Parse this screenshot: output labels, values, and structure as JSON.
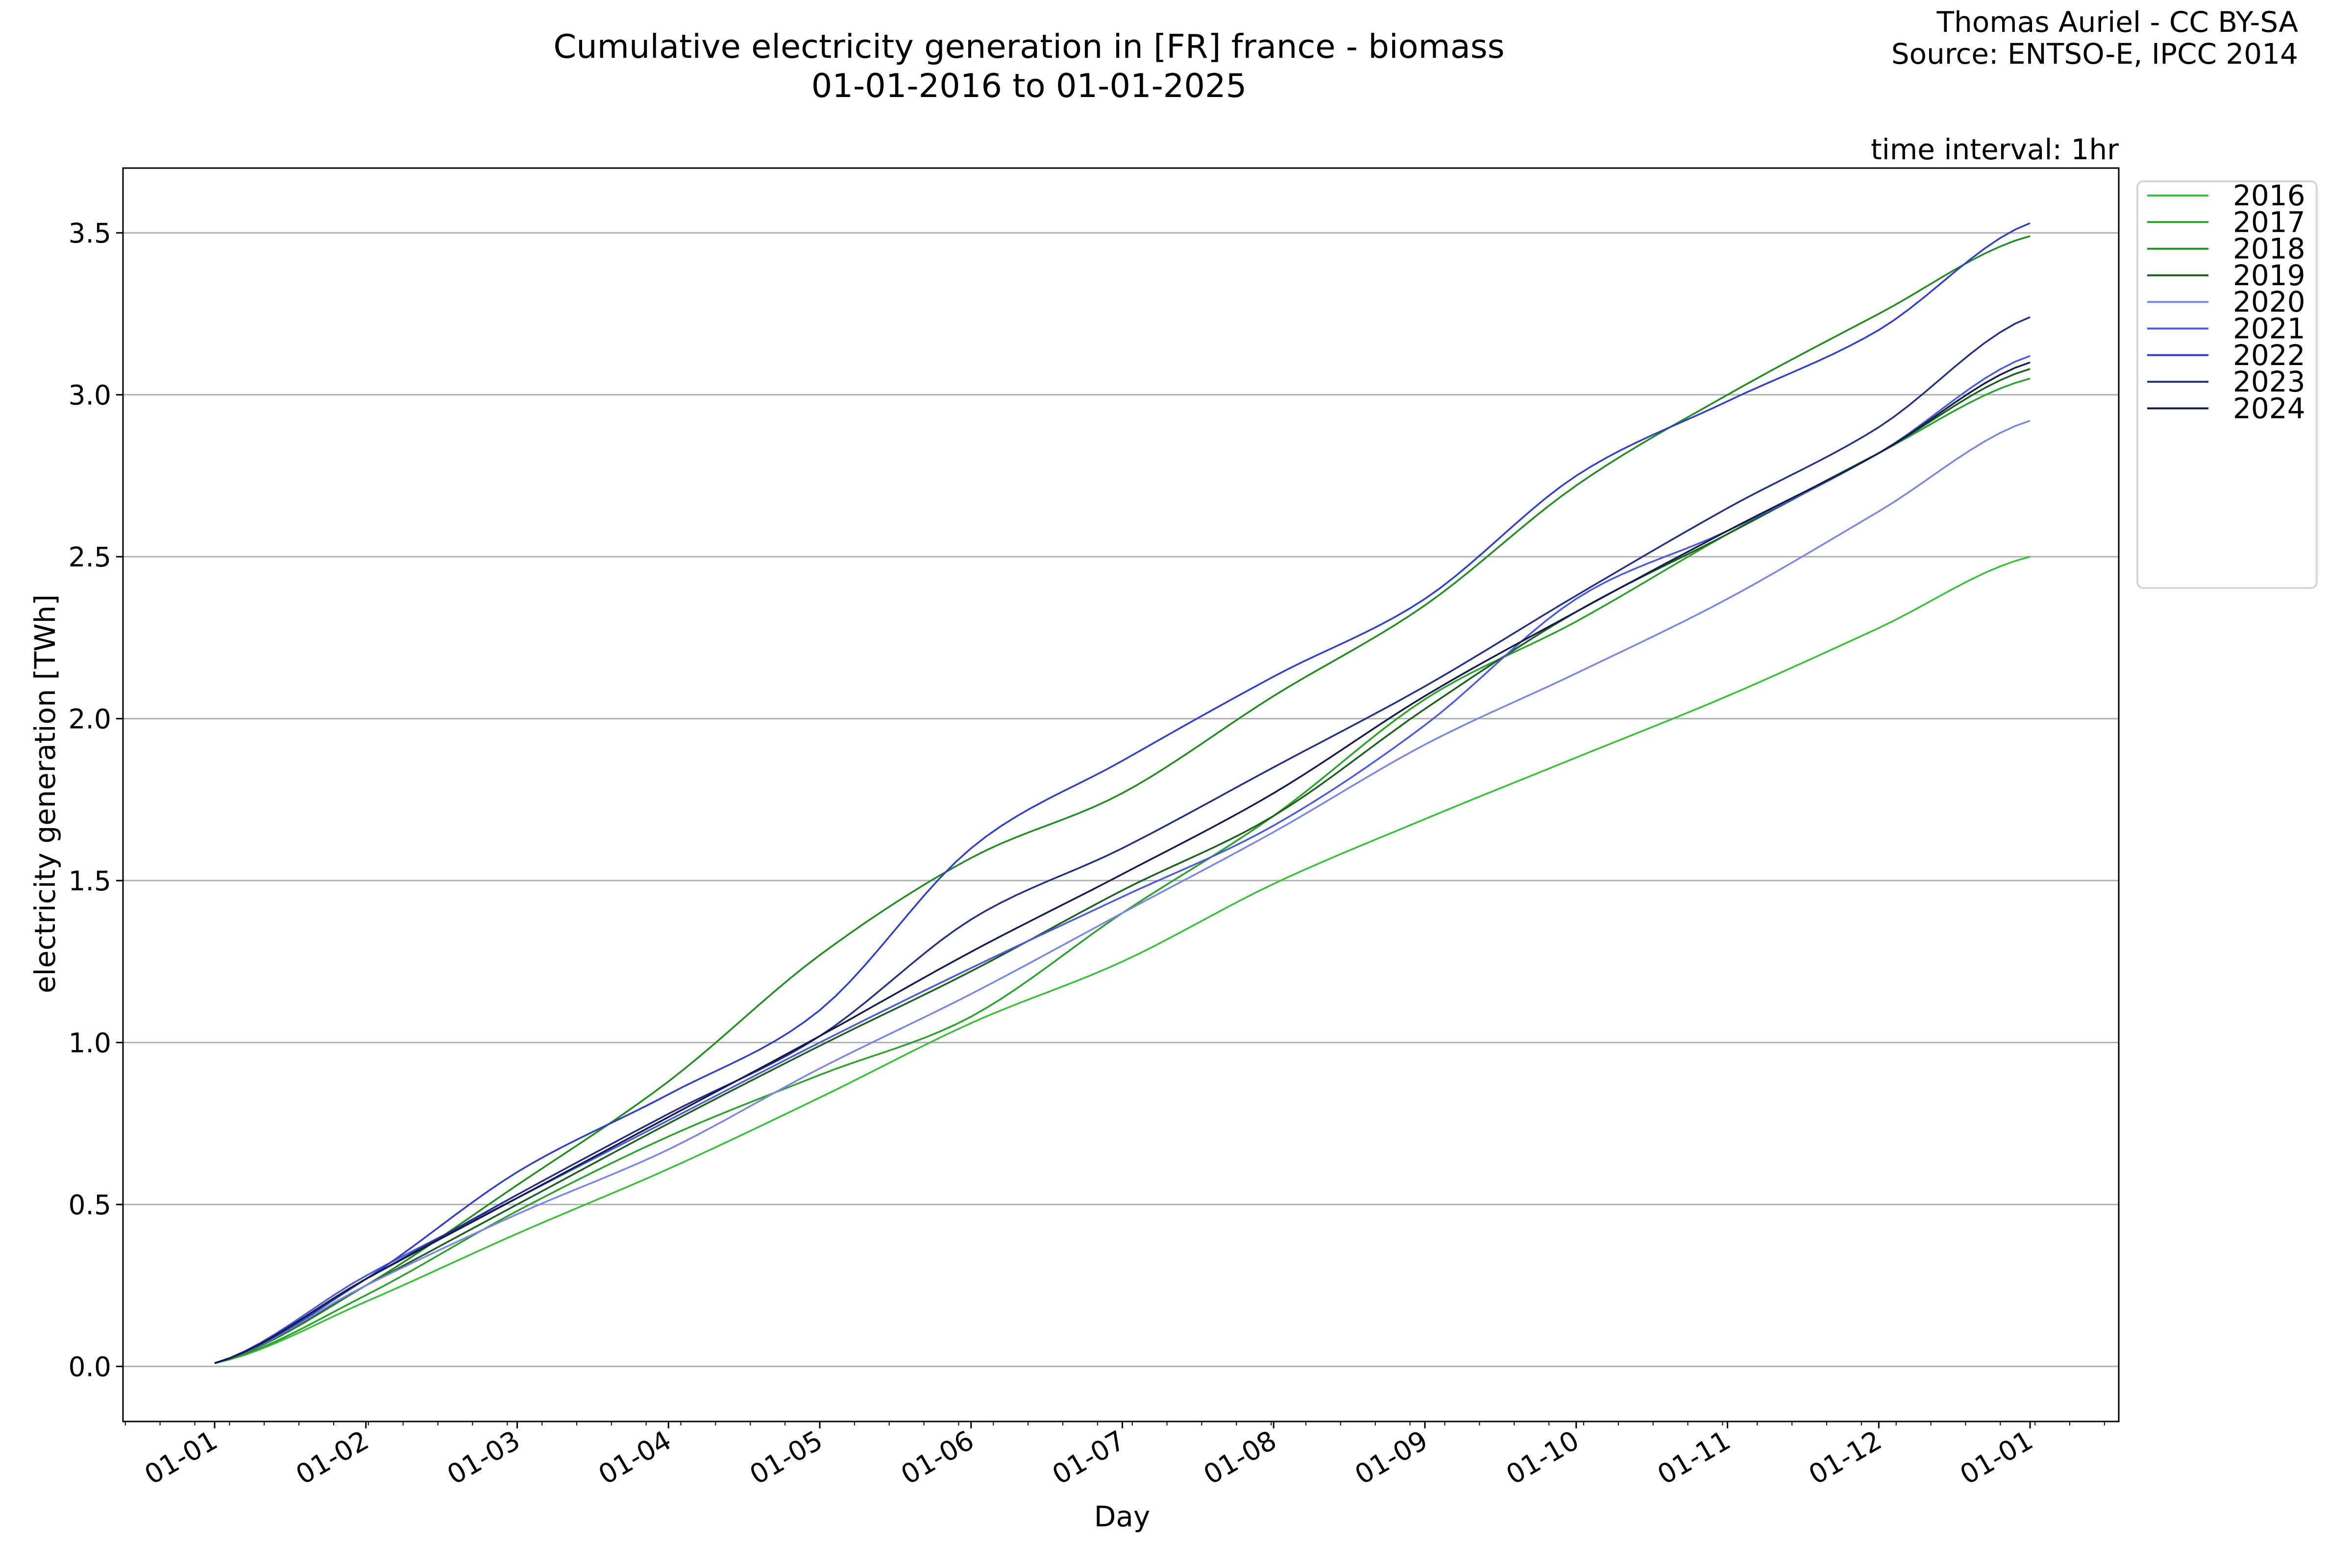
{
  "chart_data": {
    "type": "line",
    "title": "Cumulative electricity generation in [FR] france - biomass",
    "subtitle": "01-01-2016 to 01-01-2025",
    "credit": [
      "Thomas Auriel - CC BY-SA",
      "Source: ENTSO-E, IPCC 2014"
    ],
    "annotation": "time interval: 1hr",
    "xlabel": "Day",
    "ylabel": "electricity generation [TWh]",
    "x": [
      "01-01",
      "01-02",
      "01-03",
      "01-04",
      "01-05",
      "01-06",
      "01-07",
      "01-08",
      "01-09",
      "01-10",
      "01-11",
      "01-12",
      "01-01"
    ],
    "xtick_labels": [
      "01-01",
      "01-02",
      "01-03",
      "01-04",
      "01-05",
      "01-06",
      "01-07",
      "01-08",
      "01-09",
      "01-10",
      "01-11",
      "01-12",
      "01-01"
    ],
    "yticks": [
      0.0,
      0.5,
      1.0,
      1.5,
      2.0,
      2.5,
      3.0,
      3.5
    ],
    "ytick_labels": [
      "0.0",
      "0.5",
      "1.0",
      "1.5",
      "2.0",
      "2.5",
      "3.0",
      "3.5"
    ],
    "ylim": [
      -0.17,
      3.7
    ],
    "grid": "horizontal",
    "legend_placement": "outside-top-right",
    "series": [
      {
        "name": "2016",
        "color": "#3dbf3d",
        "values": [
          0.01,
          0.2,
          0.41,
          0.61,
          0.83,
          1.06,
          1.25,
          1.49,
          1.69,
          1.88,
          2.07,
          2.28,
          2.5
        ]
      },
      {
        "name": "2017",
        "color": "#2ca02c",
        "values": [
          0.01,
          0.22,
          0.48,
          0.71,
          0.9,
          1.08,
          1.4,
          1.7,
          2.06,
          2.3,
          2.57,
          2.82,
          3.05
        ]
      },
      {
        "name": "2018",
        "color": "#228b22",
        "values": [
          0.01,
          0.25,
          0.56,
          0.88,
          1.27,
          1.57,
          1.77,
          2.07,
          2.35,
          2.72,
          3.0,
          3.25,
          3.49
        ]
      },
      {
        "name": "2019",
        "color": "#1b5e20",
        "values": [
          0.01,
          0.25,
          0.5,
          0.75,
          0.99,
          1.22,
          1.47,
          1.7,
          2.03,
          2.33,
          2.57,
          2.82,
          3.08
        ]
      },
      {
        "name": "2020",
        "color": "#7b86e0",
        "values": [
          0.01,
          0.25,
          0.47,
          0.67,
          0.92,
          1.15,
          1.4,
          1.65,
          1.92,
          2.14,
          2.37,
          2.64,
          2.92
        ]
      },
      {
        "name": "2021",
        "color": "#4a5ad8",
        "values": [
          0.01,
          0.28,
          0.52,
          0.76,
          1.0,
          1.23,
          1.45,
          1.67,
          1.98,
          2.37,
          2.58,
          2.82,
          3.12
        ]
      },
      {
        "name": "2022",
        "color": "#3040c0",
        "values": [
          0.01,
          0.27,
          0.6,
          0.84,
          1.1,
          1.6,
          1.87,
          2.13,
          2.37,
          2.75,
          2.98,
          3.2,
          3.53
        ]
      },
      {
        "name": "2023",
        "color": "#252f80",
        "values": [
          0.01,
          0.27,
          0.53,
          0.78,
          1.02,
          1.38,
          1.6,
          1.85,
          2.1,
          2.38,
          2.65,
          2.9,
          3.24
        ]
      },
      {
        "name": "2024",
        "color": "#141a4a",
        "values": [
          0.01,
          0.27,
          0.52,
          0.77,
          1.02,
          1.28,
          1.52,
          1.77,
          2.07,
          2.33,
          2.58,
          2.82,
          3.1
        ]
      }
    ]
  }
}
